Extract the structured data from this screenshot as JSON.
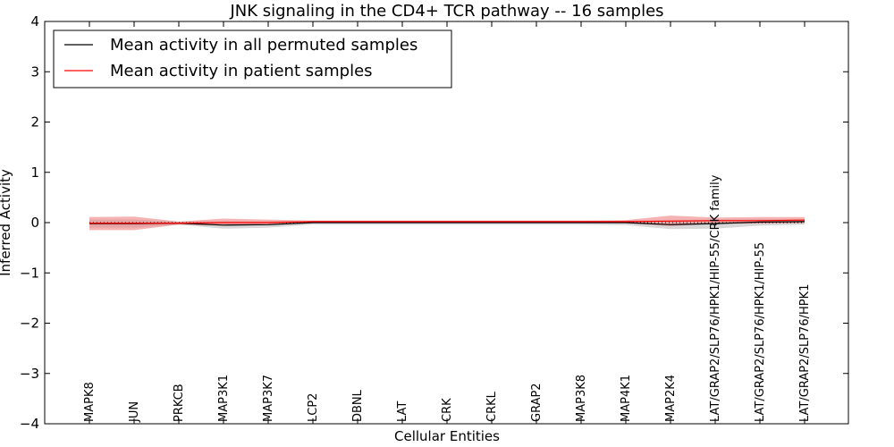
{
  "chart_data": {
    "type": "line",
    "title": "JNK signaling in the CD4+ TCR pathway -- 16 samples",
    "xlabel": "Cellular Entities",
    "ylabel": "Inferred Activity",
    "ylim": [
      -4,
      4
    ],
    "yticks": [
      4,
      3,
      2,
      1,
      0,
      -1,
      -2,
      -3,
      -4
    ],
    "ytick_labels": [
      "4",
      "3",
      "2",
      "1",
      "0",
      "−1",
      "−2",
      "−3",
      "−4"
    ],
    "grid": false,
    "legend_position": "top-left",
    "categories": [
      "MAPK8",
      "JUN",
      "PRKCB",
      "MAP3K1",
      "MAP3K7",
      "LCP2",
      "DBNL",
      "LAT",
      "CRK",
      "CRKL",
      "GRAP2",
      "MAP3K8",
      "MAP4K1",
      "MAP2K4",
      "LAT/GRAP2/SLP76/HPK1/HIP-55/CRK family",
      "LAT/GRAP2/SLP76/HPK1/HIP-55",
      "LAT/GRAP2/SLP76/HPK1"
    ],
    "series": [
      {
        "name": "Mean activity in all permuted samples",
        "color": "#000000",
        "band_color": "#b0b0b0",
        "values": [
          -0.02,
          -0.02,
          -0.01,
          -0.05,
          -0.04,
          0.0,
          0.0,
          0.0,
          0.0,
          0.0,
          0.0,
          0.0,
          0.0,
          -0.04,
          -0.02,
          0.01,
          0.02
        ],
        "upper": [
          0.06,
          0.06,
          0.02,
          0.03,
          0.03,
          0.04,
          0.04,
          0.04,
          0.04,
          0.04,
          0.04,
          0.04,
          0.04,
          0.05,
          0.06,
          0.07,
          0.07
        ],
        "lower": [
          -0.1,
          -0.1,
          -0.04,
          -0.12,
          -0.1,
          -0.04,
          -0.04,
          -0.04,
          -0.04,
          -0.04,
          -0.04,
          -0.04,
          -0.05,
          -0.13,
          -0.12,
          -0.06,
          -0.04
        ]
      },
      {
        "name": "Mean activity in patient samples",
        "color": "#ff0000",
        "band_color": "#f08080",
        "values": [
          -0.01,
          -0.01,
          -0.01,
          0.0,
          0.0,
          0.02,
          0.02,
          0.02,
          0.02,
          0.02,
          0.02,
          0.02,
          0.02,
          0.03,
          0.04,
          0.04,
          0.05
        ],
        "upper": [
          0.11,
          0.12,
          0.02,
          0.08,
          0.06,
          0.04,
          0.04,
          0.04,
          0.04,
          0.04,
          0.04,
          0.04,
          0.05,
          0.14,
          0.1,
          0.11,
          0.11
        ],
        "lower": [
          -0.15,
          -0.15,
          -0.04,
          -0.06,
          -0.04,
          0.0,
          0.0,
          0.0,
          0.0,
          0.0,
          0.0,
          0.0,
          -0.01,
          -0.07,
          -0.02,
          -0.02,
          -0.01
        ]
      }
    ],
    "reference_line": {
      "value": 0,
      "style": "dotted"
    }
  }
}
